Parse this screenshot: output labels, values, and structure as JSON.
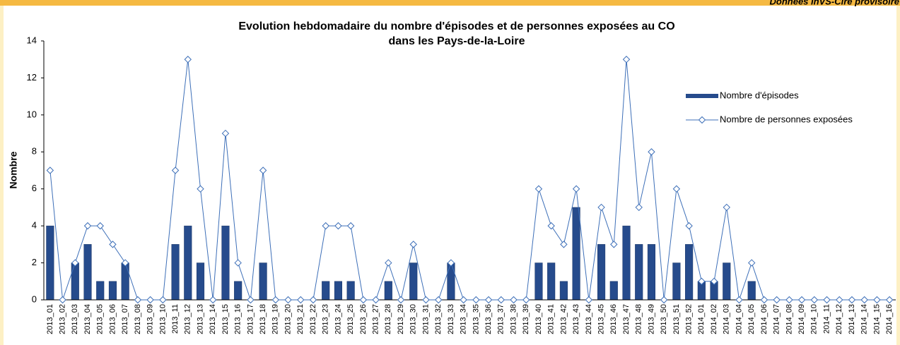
{
  "chart_data": {
    "type": "bar_line",
    "note": "Données InVS-Cire provisoire",
    "title": "Evolution hebdomadaire du nombre d'épisodes et de personnes exposées au CO",
    "subtitle": "dans les Pays-de-la-Loire",
    "y_label": "Nombre",
    "categories": [
      "2013_01",
      "2013_02",
      "2013_03",
      "2013_04",
      "2013_05",
      "2013_06",
      "2013_07",
      "2013_08",
      "2013_09",
      "2013_10",
      "2013_11",
      "2013_12",
      "2013_13",
      "2013_14",
      "2013_15",
      "2013_16",
      "2013_17",
      "2013_18",
      "2013_19",
      "2013_20",
      "2013_21",
      "2013_22",
      "2013_23",
      "2013_24",
      "2013_25",
      "2013_26",
      "2013_27",
      "2013_28",
      "2013_29",
      "2013_30",
      "2013_31",
      "2013_32",
      "2013_33",
      "2013_34",
      "2013_35",
      "2013_36",
      "2013_37",
      "2013_38",
      "2013_39",
      "2013_40",
      "2013_41",
      "2013_42",
      "2013_43",
      "2013_44",
      "2013_45",
      "2013_46",
      "2013_47",
      "2013_48",
      "2013_49",
      "2013_50",
      "2013_51",
      "2013_52",
      "2014_01",
      "2014_02",
      "2014_03",
      "2014_04",
      "2014_05",
      "2014_06",
      "2014_07",
      "2014_08",
      "2014_09",
      "2014_10",
      "2014_11",
      "2014_12",
      "2014_13",
      "2014_14",
      "2014_15",
      "2014_16"
    ],
    "series": [
      {
        "name": "Nombre d'épisodes",
        "kind": "bar",
        "color": "#264b8c",
        "values": [
          4,
          0,
          2,
          3,
          1,
          1,
          2,
          0,
          0,
          0,
          3,
          4,
          2,
          0,
          4,
          1,
          0,
          2,
          0,
          0,
          0,
          0,
          1,
          1,
          1,
          0,
          0,
          1,
          0,
          2,
          0,
          0,
          2,
          0,
          0,
          0,
          0,
          0,
          0,
          2,
          2,
          1,
          5,
          0,
          3,
          1,
          4,
          3,
          3,
          0,
          2,
          3,
          1,
          1,
          2,
          0,
          1,
          0,
          0,
          0,
          0,
          0,
          0,
          0,
          0,
          0,
          0,
          0
        ]
      },
      {
        "name": "Nombre de personnes exposées",
        "kind": "line",
        "color": "#3d6fb8",
        "values": [
          7,
          0,
          2,
          4,
          4,
          3,
          2,
          0,
          0,
          0,
          7,
          13,
          6,
          0,
          9,
          2,
          0,
          7,
          0,
          0,
          0,
          0,
          4,
          4,
          4,
          0,
          0,
          2,
          0,
          3,
          0,
          0,
          2,
          0,
          0,
          0,
          0,
          0,
          0,
          6,
          4,
          3,
          6,
          0,
          5,
          3,
          13,
          5,
          8,
          0,
          6,
          4,
          1,
          1,
          5,
          0,
          2,
          0,
          0,
          0,
          0,
          0,
          0,
          0,
          0,
          0,
          0,
          0
        ]
      }
    ],
    "ylim": [
      0,
      14
    ],
    "yticks": [
      0,
      2,
      4,
      6,
      8,
      10,
      12,
      14
    ],
    "grid": false,
    "legend": "upper right"
  }
}
